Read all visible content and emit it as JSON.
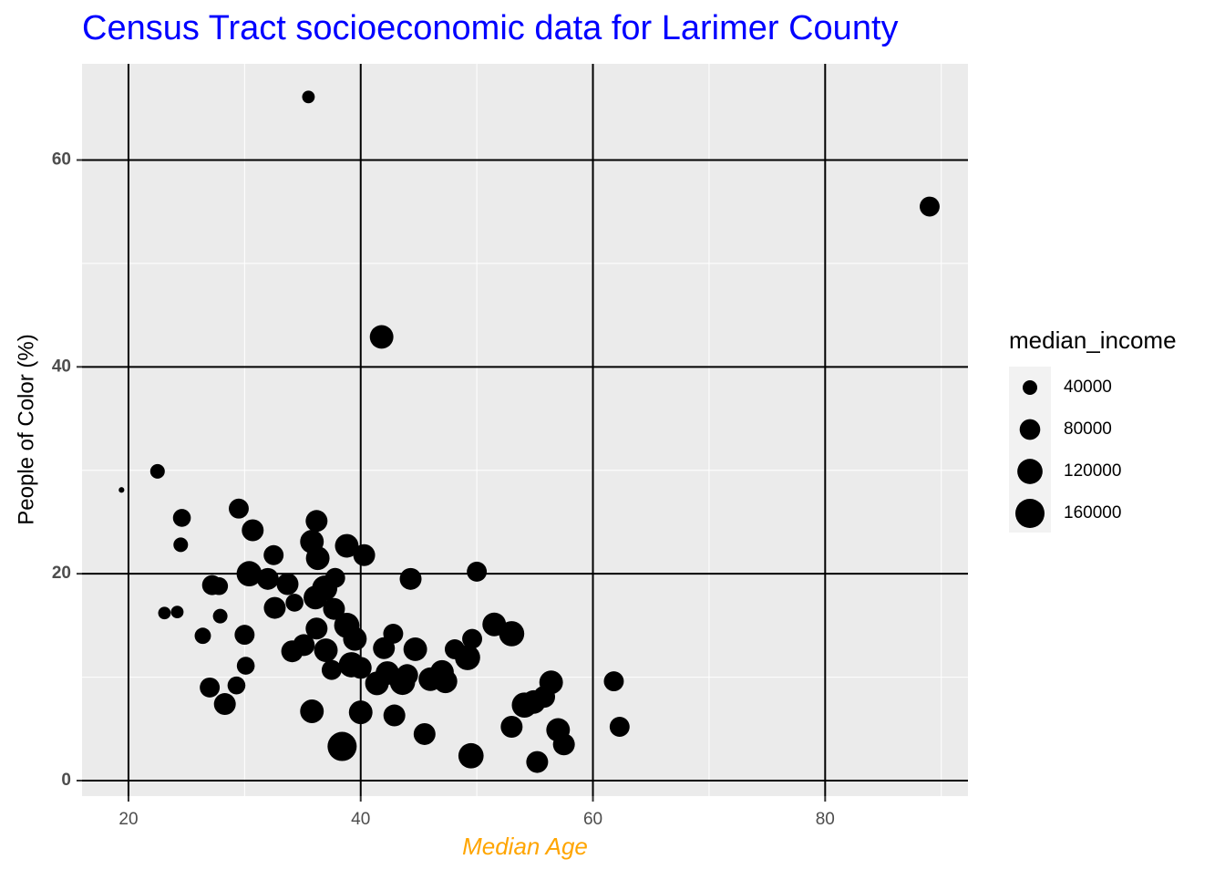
{
  "chart_data": {
    "type": "scatter",
    "title": "Census Tract socioeconomic data for Larimer County",
    "title_color": "#0000ff",
    "x_label": "Median Age",
    "x_label_color": "#ffa500",
    "y_label": "People of Color (%)",
    "color": "#000000",
    "x": [
      35.5,
      89.0,
      41.8,
      19.4,
      22.5,
      24.6,
      24.5,
      23.1,
      24.2,
      26.4,
      27.9,
      27.2,
      27.8,
      29.5,
      30.7,
      30.4,
      30.0,
      30.1,
      27.0,
      29.3,
      28.3,
      32.5,
      32.0,
      32.6,
      33.7,
      34.3,
      34.1,
      35.1,
      36.2,
      35.8,
      36.3,
      36.1,
      36.9,
      36.2,
      37.0,
      37.8,
      37.7,
      37.5,
      35.8,
      38.4,
      38.8,
      38.8,
      39.5,
      39.2,
      40.3,
      40.0,
      40.0,
      41.4,
      42.0,
      42.8,
      42.3,
      43.6,
      44.0,
      42.9,
      44.3,
      44.7,
      45.5,
      46.0,
      47.0,
      47.3,
      48.1,
      49.2,
      49.6,
      50.0,
      49.5,
      51.5,
      53.0,
      53.0,
      54.1,
      54.9,
      55.8,
      56.4,
      55.2,
      57.0,
      57.5,
      61.8,
      62.3
    ],
    "values": [
      66.1,
      55.5,
      42.9,
      28.1,
      29.9,
      25.4,
      22.8,
      16.2,
      16.3,
      14.0,
      15.9,
      18.9,
      18.8,
      26.3,
      24.2,
      20.0,
      14.1,
      11.1,
      9.0,
      9.2,
      7.4,
      21.8,
      19.5,
      16.7,
      19.0,
      17.2,
      12.5,
      13.1,
      25.1,
      23.1,
      21.5,
      17.7,
      18.6,
      14.7,
      12.6,
      19.6,
      16.6,
      10.7,
      6.7,
      3.3,
      22.7,
      15.0,
      13.7,
      11.2,
      21.8,
      10.9,
      6.6,
      9.4,
      12.8,
      14.2,
      10.4,
      9.5,
      10.2,
      6.3,
      19.5,
      12.7,
      4.5,
      9.8,
      10.5,
      9.6,
      12.7,
      11.9,
      13.7,
      20.2,
      2.4,
      15.1,
      14.2,
      5.2,
      7.3,
      7.6,
      8.1,
      9.5,
      1.8,
      4.9,
      3.5,
      9.6,
      5.2
    ],
    "sizes": [
      30000,
      75000,
      105000,
      6000,
      40000,
      60000,
      40000,
      30000,
      30000,
      50000,
      40000,
      75000,
      60000,
      75000,
      90000,
      120000,
      75000,
      60000,
      75000,
      60000,
      90000,
      75000,
      90000,
      90000,
      90000,
      60000,
      90000,
      90000,
      90000,
      105000,
      105000,
      105000,
      120000,
      90000,
      105000,
      75000,
      90000,
      75000,
      105000,
      160000,
      105000,
      120000,
      105000,
      120000,
      90000,
      90000,
      105000,
      105000,
      90000,
      75000,
      105000,
      120000,
      90000,
      90000,
      90000,
      105000,
      90000,
      105000,
      105000,
      105000,
      75000,
      120000,
      75000,
      75000,
      120000,
      105000,
      120000,
      90000,
      120000,
      105000,
      90000,
      105000,
      90000,
      105000,
      90000,
      75000,
      75000
    ],
    "size_legend": {
      "title": "median_income",
      "breaks": [
        40000,
        80000,
        120000,
        160000
      ]
    },
    "xlim": [
      16.0,
      92.3
    ],
    "xticks": [
      20,
      40,
      60,
      80
    ],
    "x_minor_grid": [
      30,
      50,
      70,
      90
    ],
    "ylim": [
      -1.5,
      69.3
    ],
    "yticks": [
      0,
      20,
      40,
      60
    ],
    "y_minor_grid": [
      10,
      30,
      50
    ],
    "grid": true
  }
}
